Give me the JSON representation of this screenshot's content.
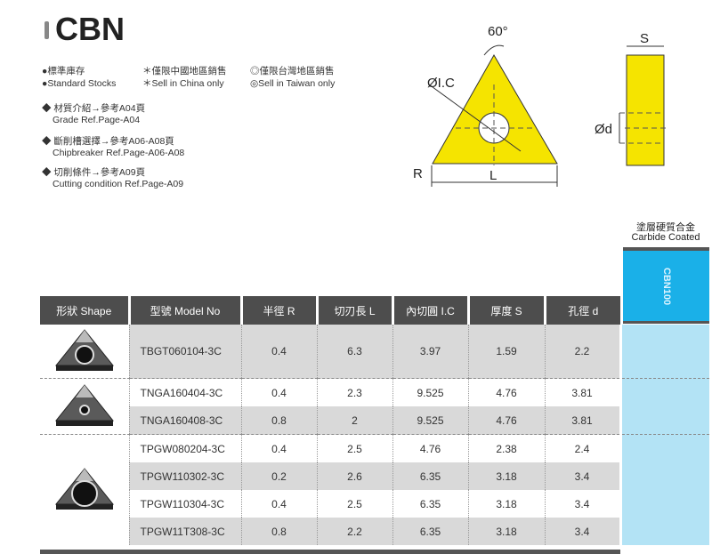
{
  "title": "CBN",
  "legend": {
    "stock_zh": "●標準庫存",
    "stock_en": "●Standard Stocks",
    "china_zh": "＊僅限中國地區銷售",
    "china_en": "＊Sell in China only",
    "taiwan_zh": "◎僅限台灣地區銷售",
    "taiwan_en": "◎Sell in Taiwan only"
  },
  "notes": [
    {
      "zh": "◆ 材質介紹→參考A04頁",
      "en": "Grade Ref.Page-A04"
    },
    {
      "zh": "◆ 斷削槽選擇→參考A06-A08頁",
      "en": "Chipbreaker Ref.Page-A06-A08"
    },
    {
      "zh": "◆ 切削條件→參考A09頁",
      "en": "Cutting condition Ref.Page-A09"
    }
  ],
  "diagram": {
    "angle": "60°",
    "ic": "ØI.C",
    "r": "R",
    "l": "L",
    "s": "S",
    "d": "Ød",
    "fill": "#f5e400"
  },
  "coating": {
    "zh": "塗層硬質合金",
    "en": "Carbide Coated",
    "grade": "CBN100",
    "color": "#1ab0e8"
  },
  "headers": [
    "形狀 Shape",
    "型號 Model No",
    "半徑 R",
    "切刃長 L",
    "內切圓 I.C",
    "厚度 S",
    "孔徑 d"
  ],
  "rows": [
    {
      "model": "TBGT060104-3C",
      "r": "0.4",
      "l": "6.3",
      "ic": "3.97",
      "s": "1.59",
      "d": "2.2"
    },
    {
      "model": "TNGA160404-3C",
      "r": "0.4",
      "l": "2.3",
      "ic": "9.525",
      "s": "4.76",
      "d": "3.81"
    },
    {
      "model": "TNGA160408-3C",
      "r": "0.8",
      "l": "2",
      "ic": "9.525",
      "s": "4.76",
      "d": "3.81"
    },
    {
      "model": "TPGW080204-3C",
      "r": "0.4",
      "l": "2.5",
      "ic": "4.76",
      "s": "2.38",
      "d": "2.4"
    },
    {
      "model": "TPGW110302-3C",
      "r": "0.2",
      "l": "2.6",
      "ic": "6.35",
      "s": "3.18",
      "d": "3.4"
    },
    {
      "model": "TPGW110304-3C",
      "r": "0.4",
      "l": "2.5",
      "ic": "6.35",
      "s": "3.18",
      "d": "3.4"
    },
    {
      "model": "TPGW11T308-3C",
      "r": "0.8",
      "l": "2.2",
      "ic": "6.35",
      "s": "3.18",
      "d": "3.4"
    }
  ]
}
